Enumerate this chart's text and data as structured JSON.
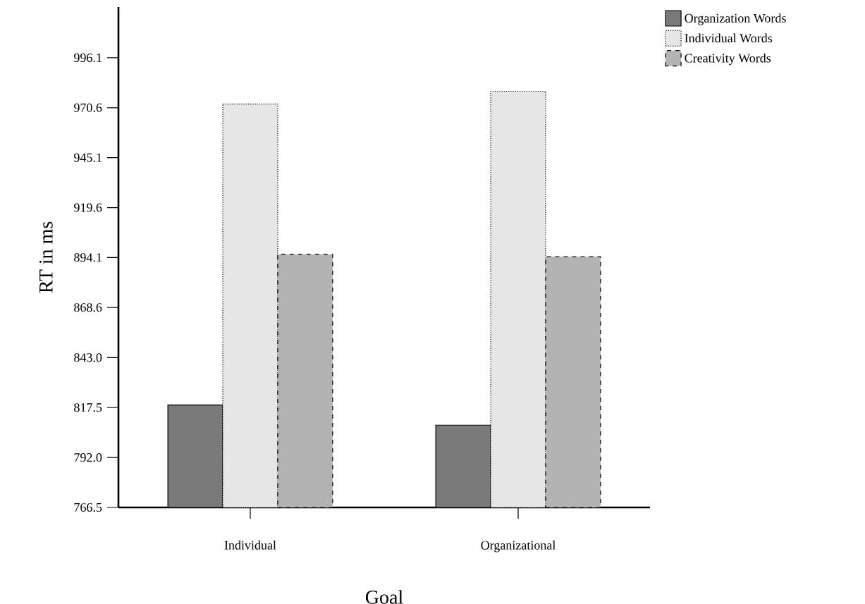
{
  "chart_data": {
    "type": "bar",
    "xlabel": "Goal",
    "ylabel": "RT in ms",
    "categories": [
      "Individual",
      "Organizational"
    ],
    "series": [
      {
        "name": "Organization   Words",
        "color": "#7a7a7a",
        "values": [
          818.8,
          808.5
        ],
        "line_style": "solid"
      },
      {
        "name": "Individual Words",
        "color": "#e6e6e6",
        "values": [
          972.5,
          979.0
        ],
        "line_style": "dotted"
      },
      {
        "name": "Creativity Words",
        "color": "#b3b3b3",
        "values": [
          895.7,
          894.5
        ],
        "line_style": "dashed"
      }
    ],
    "ylim": [
      766.5,
      1022
    ],
    "yticks": [
      766.5,
      {
        "value": 792,
        "label": "792.0"
      },
      817.5,
      {
        "value": 843,
        "label": "843.0"
      },
      868.6,
      894.1,
      919.6,
      945.1,
      970.6,
      996.1
    ],
    "grid": false,
    "legend": "top right"
  }
}
